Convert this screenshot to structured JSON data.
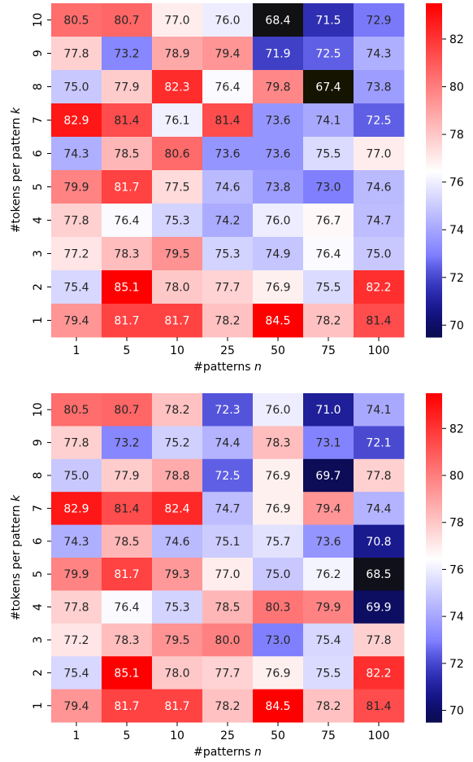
{
  "chart_data": [
    {
      "type": "heatmap",
      "xlabel": "#patterns n",
      "ylabel": "#tokens per pattern k",
      "x_categories": [
        "1",
        "5",
        "10",
        "25",
        "50",
        "75",
        "100"
      ],
      "y_categories": [
        "10",
        "9",
        "8",
        "7",
        "6",
        "5",
        "4",
        "3",
        "2",
        "1"
      ],
      "values": [
        [
          80.5,
          80.7,
          77.0,
          76.0,
          68.4,
          71.5,
          72.9
        ],
        [
          77.8,
          73.2,
          78.9,
          79.4,
          71.9,
          72.5,
          74.3
        ],
        [
          75.0,
          77.9,
          82.3,
          76.4,
          79.8,
          67.4,
          73.8
        ],
        [
          82.9,
          81.4,
          76.1,
          81.4,
          73.6,
          74.1,
          72.5
        ],
        [
          74.3,
          78.5,
          80.6,
          73.6,
          73.6,
          75.5,
          77.0
        ],
        [
          79.9,
          81.7,
          77.5,
          74.6,
          73.8,
          73.0,
          74.6
        ],
        [
          77.8,
          76.4,
          75.3,
          74.2,
          76.0,
          76.7,
          74.7
        ],
        [
          77.2,
          78.3,
          79.5,
          75.3,
          74.9,
          76.4,
          75.0
        ],
        [
          75.4,
          85.1,
          78.0,
          77.7,
          76.9,
          75.5,
          82.2
        ],
        [
          79.4,
          81.7,
          81.7,
          78.2,
          84.5,
          78.2,
          81.4
        ]
      ],
      "colormap": "bwr",
      "vmin": 69.5,
      "vmax": 83.5,
      "colorbar_ticks": [
        "70",
        "72",
        "74",
        "76",
        "78",
        "80",
        "82"
      ]
    },
    {
      "type": "heatmap",
      "xlabel": "#patterns n",
      "ylabel": "#tokens per pattern k",
      "x_categories": [
        "1",
        "5",
        "10",
        "25",
        "50",
        "75",
        "100"
      ],
      "y_categories": [
        "10",
        "9",
        "8",
        "7",
        "6",
        "5",
        "4",
        "3",
        "2",
        "1"
      ],
      "values": [
        [
          80.5,
          80.7,
          78.2,
          72.3,
          76.0,
          71.0,
          74.1
        ],
        [
          77.8,
          73.2,
          75.2,
          74.4,
          78.3,
          73.1,
          72.1
        ],
        [
          75.0,
          77.9,
          78.8,
          72.5,
          76.9,
          69.7,
          77.8
        ],
        [
          82.9,
          81.4,
          82.4,
          74.7,
          76.9,
          79.4,
          74.4
        ],
        [
          74.3,
          78.5,
          74.6,
          75.1,
          75.7,
          73.6,
          70.8
        ],
        [
          79.9,
          81.7,
          79.3,
          77.0,
          75.0,
          76.2,
          68.5
        ],
        [
          77.8,
          76.4,
          75.3,
          78.5,
          80.3,
          79.9,
          69.9
        ],
        [
          77.2,
          78.3,
          79.5,
          80.0,
          73.0,
          75.4,
          77.8
        ],
        [
          75.4,
          85.1,
          78.0,
          77.7,
          76.9,
          75.5,
          82.2
        ],
        [
          79.4,
          81.7,
          81.7,
          78.2,
          84.5,
          78.2,
          81.4
        ]
      ],
      "colormap": "bwr",
      "vmin": 69.5,
      "vmax": 83.5,
      "colorbar_ticks": [
        "70",
        "72",
        "74",
        "76",
        "78",
        "80",
        "82"
      ]
    }
  ]
}
